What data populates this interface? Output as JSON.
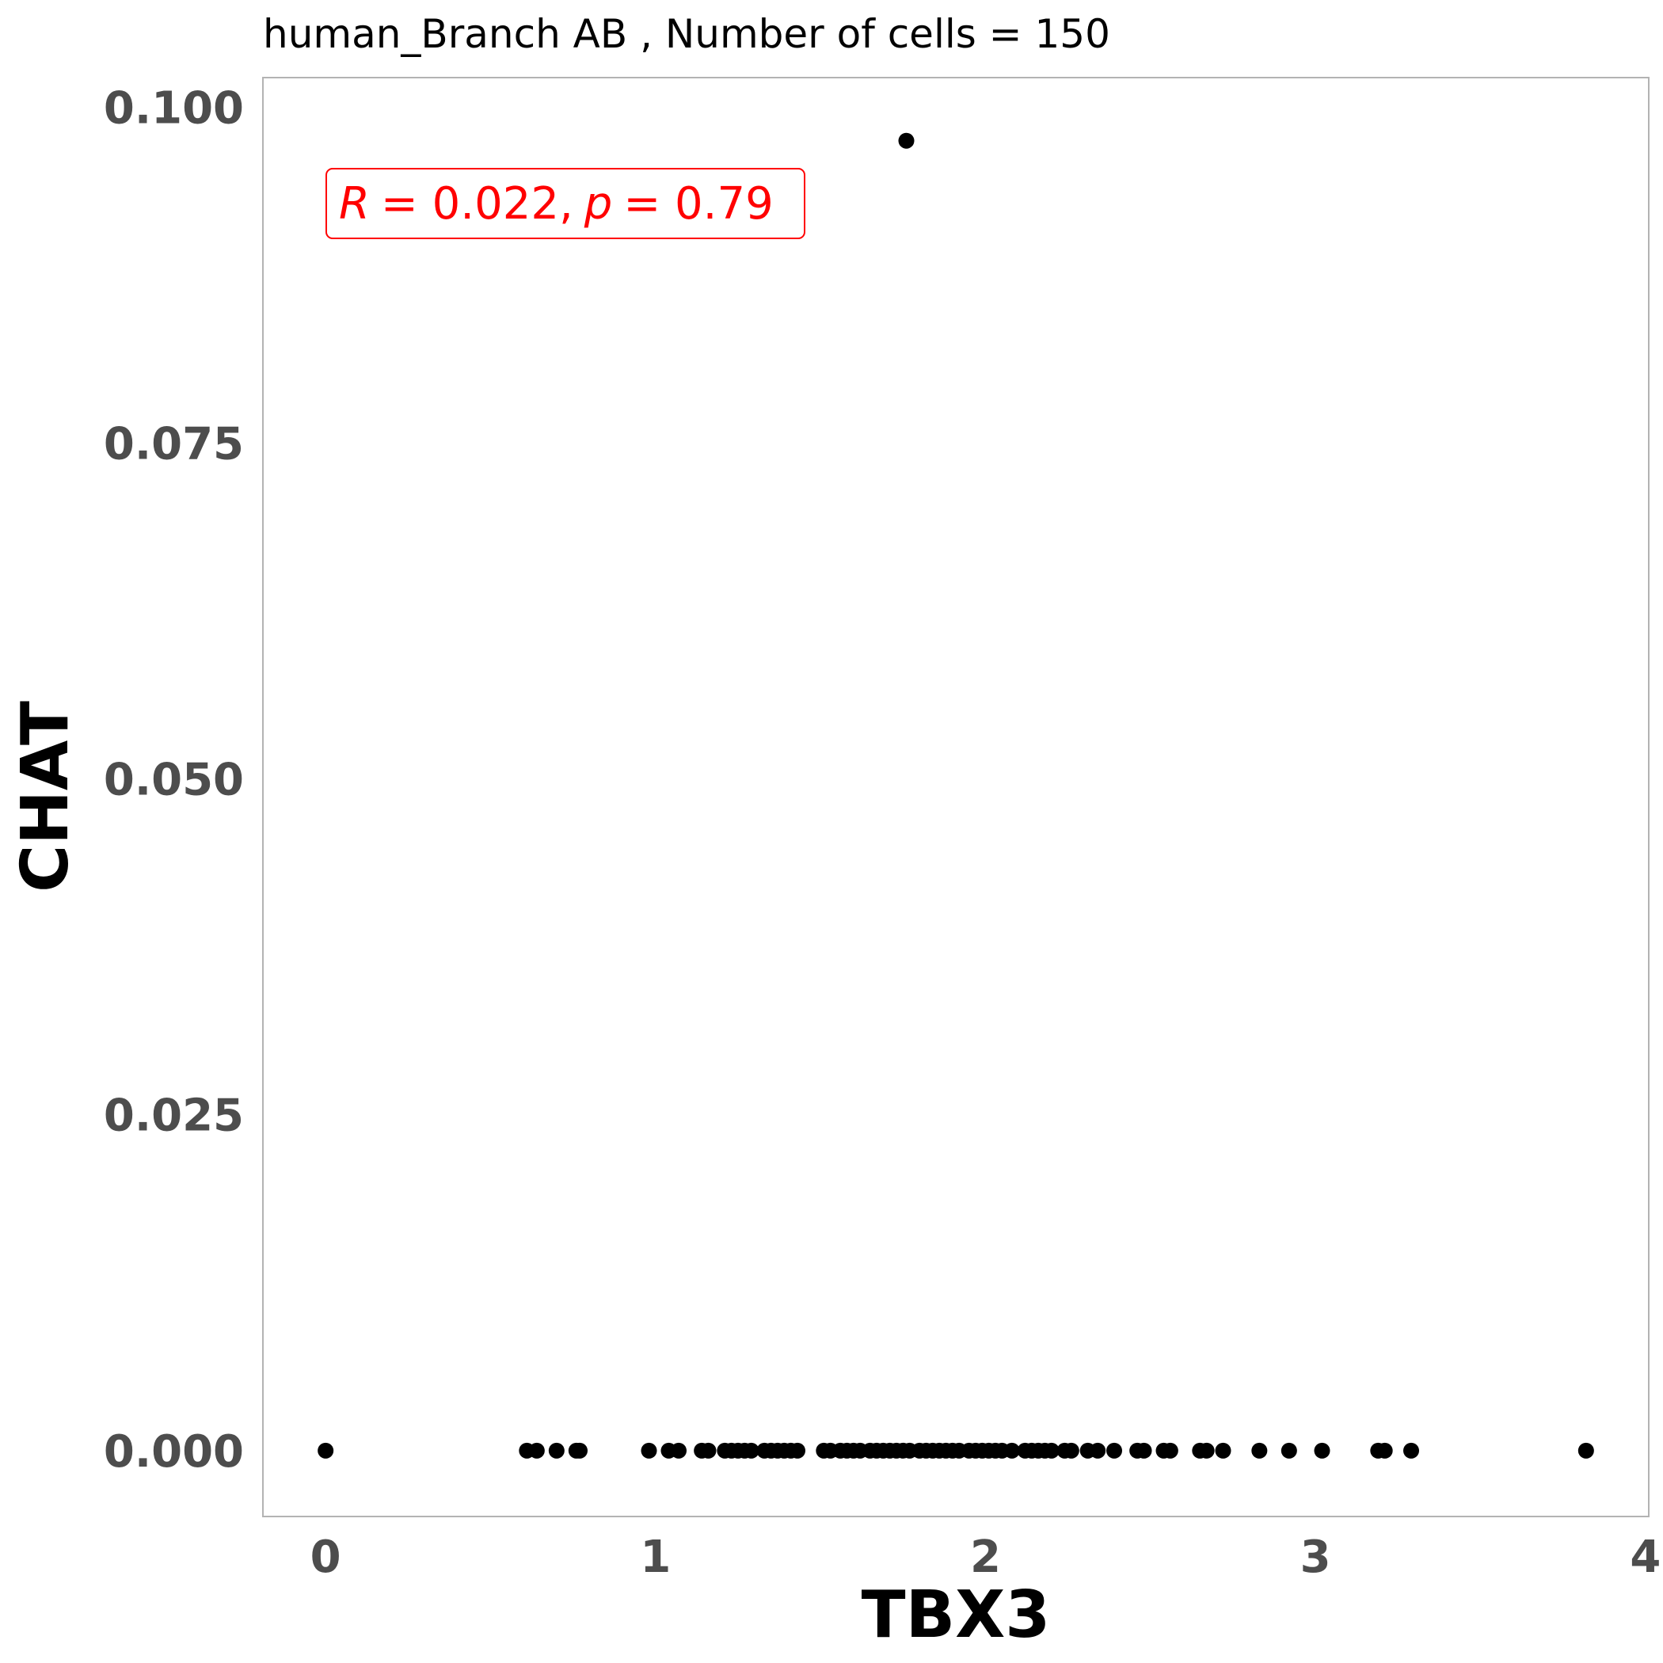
{
  "chart_data": {
    "type": "scatter",
    "title": "human_Branch AB , Number of cells =  150",
    "xlabel": "TBX3",
    "ylabel": "CHAT",
    "xlim": [
      -0.19,
      4.01
    ],
    "ylim": [
      -0.0049,
      0.1022
    ],
    "xticks": [
      0,
      1,
      2,
      3,
      4
    ],
    "xtick_labels": [
      "0",
      "1",
      "2",
      "3",
      "4"
    ],
    "yticks": [
      0.0,
      0.025,
      0.05,
      0.075,
      0.1
    ],
    "ytick_labels": [
      "0.000",
      "0.025",
      "0.050",
      "0.075",
      "0.100"
    ],
    "grid": false,
    "annotation": {
      "r_symbol": "R",
      "r_value": "= 0.022,",
      "p_symbol": "p",
      "p_value": "= 0.79",
      "color": "#ff0000"
    },
    "point_color": "#000000",
    "points": [
      {
        "x": 0.0,
        "y": 0
      },
      {
        "x": 0.61,
        "y": 0
      },
      {
        "x": 0.64,
        "y": 0
      },
      {
        "x": 0.7,
        "y": 0
      },
      {
        "x": 0.76,
        "y": 0
      },
      {
        "x": 0.77,
        "y": 0
      },
      {
        "x": 0.98,
        "y": 0
      },
      {
        "x": 1.04,
        "y": 0
      },
      {
        "x": 1.07,
        "y": 0
      },
      {
        "x": 1.14,
        "y": 0
      },
      {
        "x": 1.16,
        "y": 0
      },
      {
        "x": 1.21,
        "y": 0
      },
      {
        "x": 1.23,
        "y": 0
      },
      {
        "x": 1.25,
        "y": 0
      },
      {
        "x": 1.27,
        "y": 0
      },
      {
        "x": 1.29,
        "y": 0
      },
      {
        "x": 1.33,
        "y": 0
      },
      {
        "x": 1.35,
        "y": 0
      },
      {
        "x": 1.37,
        "y": 0
      },
      {
        "x": 1.39,
        "y": 0
      },
      {
        "x": 1.41,
        "y": 0
      },
      {
        "x": 1.43,
        "y": 0
      },
      {
        "x": 1.51,
        "y": 0
      },
      {
        "x": 1.53,
        "y": 0
      },
      {
        "x": 1.56,
        "y": 0
      },
      {
        "x": 1.58,
        "y": 0
      },
      {
        "x": 1.6,
        "y": 0
      },
      {
        "x": 1.62,
        "y": 0
      },
      {
        "x": 1.65,
        "y": 0
      },
      {
        "x": 1.67,
        "y": 0
      },
      {
        "x": 1.69,
        "y": 0
      },
      {
        "x": 1.71,
        "y": 0
      },
      {
        "x": 1.73,
        "y": 0
      },
      {
        "x": 1.75,
        "y": 0
      },
      {
        "x": 1.77,
        "y": 0
      },
      {
        "x": 1.8,
        "y": 0
      },
      {
        "x": 1.82,
        "y": 0
      },
      {
        "x": 1.84,
        "y": 0
      },
      {
        "x": 1.86,
        "y": 0
      },
      {
        "x": 1.88,
        "y": 0
      },
      {
        "x": 1.9,
        "y": 0
      },
      {
        "x": 1.92,
        "y": 0
      },
      {
        "x": 1.95,
        "y": 0
      },
      {
        "x": 1.97,
        "y": 0
      },
      {
        "x": 1.99,
        "y": 0
      },
      {
        "x": 2.01,
        "y": 0
      },
      {
        "x": 2.03,
        "y": 0
      },
      {
        "x": 2.05,
        "y": 0
      },
      {
        "x": 2.08,
        "y": 0
      },
      {
        "x": 2.12,
        "y": 0
      },
      {
        "x": 2.14,
        "y": 0
      },
      {
        "x": 2.16,
        "y": 0
      },
      {
        "x": 2.18,
        "y": 0
      },
      {
        "x": 2.2,
        "y": 0
      },
      {
        "x": 2.24,
        "y": 0
      },
      {
        "x": 2.26,
        "y": 0
      },
      {
        "x": 2.31,
        "y": 0
      },
      {
        "x": 2.34,
        "y": 0
      },
      {
        "x": 2.39,
        "y": 0
      },
      {
        "x": 2.46,
        "y": 0
      },
      {
        "x": 2.48,
        "y": 0
      },
      {
        "x": 2.54,
        "y": 0
      },
      {
        "x": 2.56,
        "y": 0
      },
      {
        "x": 2.65,
        "y": 0
      },
      {
        "x": 2.67,
        "y": 0
      },
      {
        "x": 2.72,
        "y": 0
      },
      {
        "x": 2.83,
        "y": 0
      },
      {
        "x": 2.92,
        "y": 0
      },
      {
        "x": 3.02,
        "y": 0
      },
      {
        "x": 3.19,
        "y": 0
      },
      {
        "x": 3.21,
        "y": 0
      },
      {
        "x": 3.29,
        "y": 0
      },
      {
        "x": 3.82,
        "y": 0
      },
      {
        "x": 1.76,
        "y": 0.0975
      }
    ]
  }
}
